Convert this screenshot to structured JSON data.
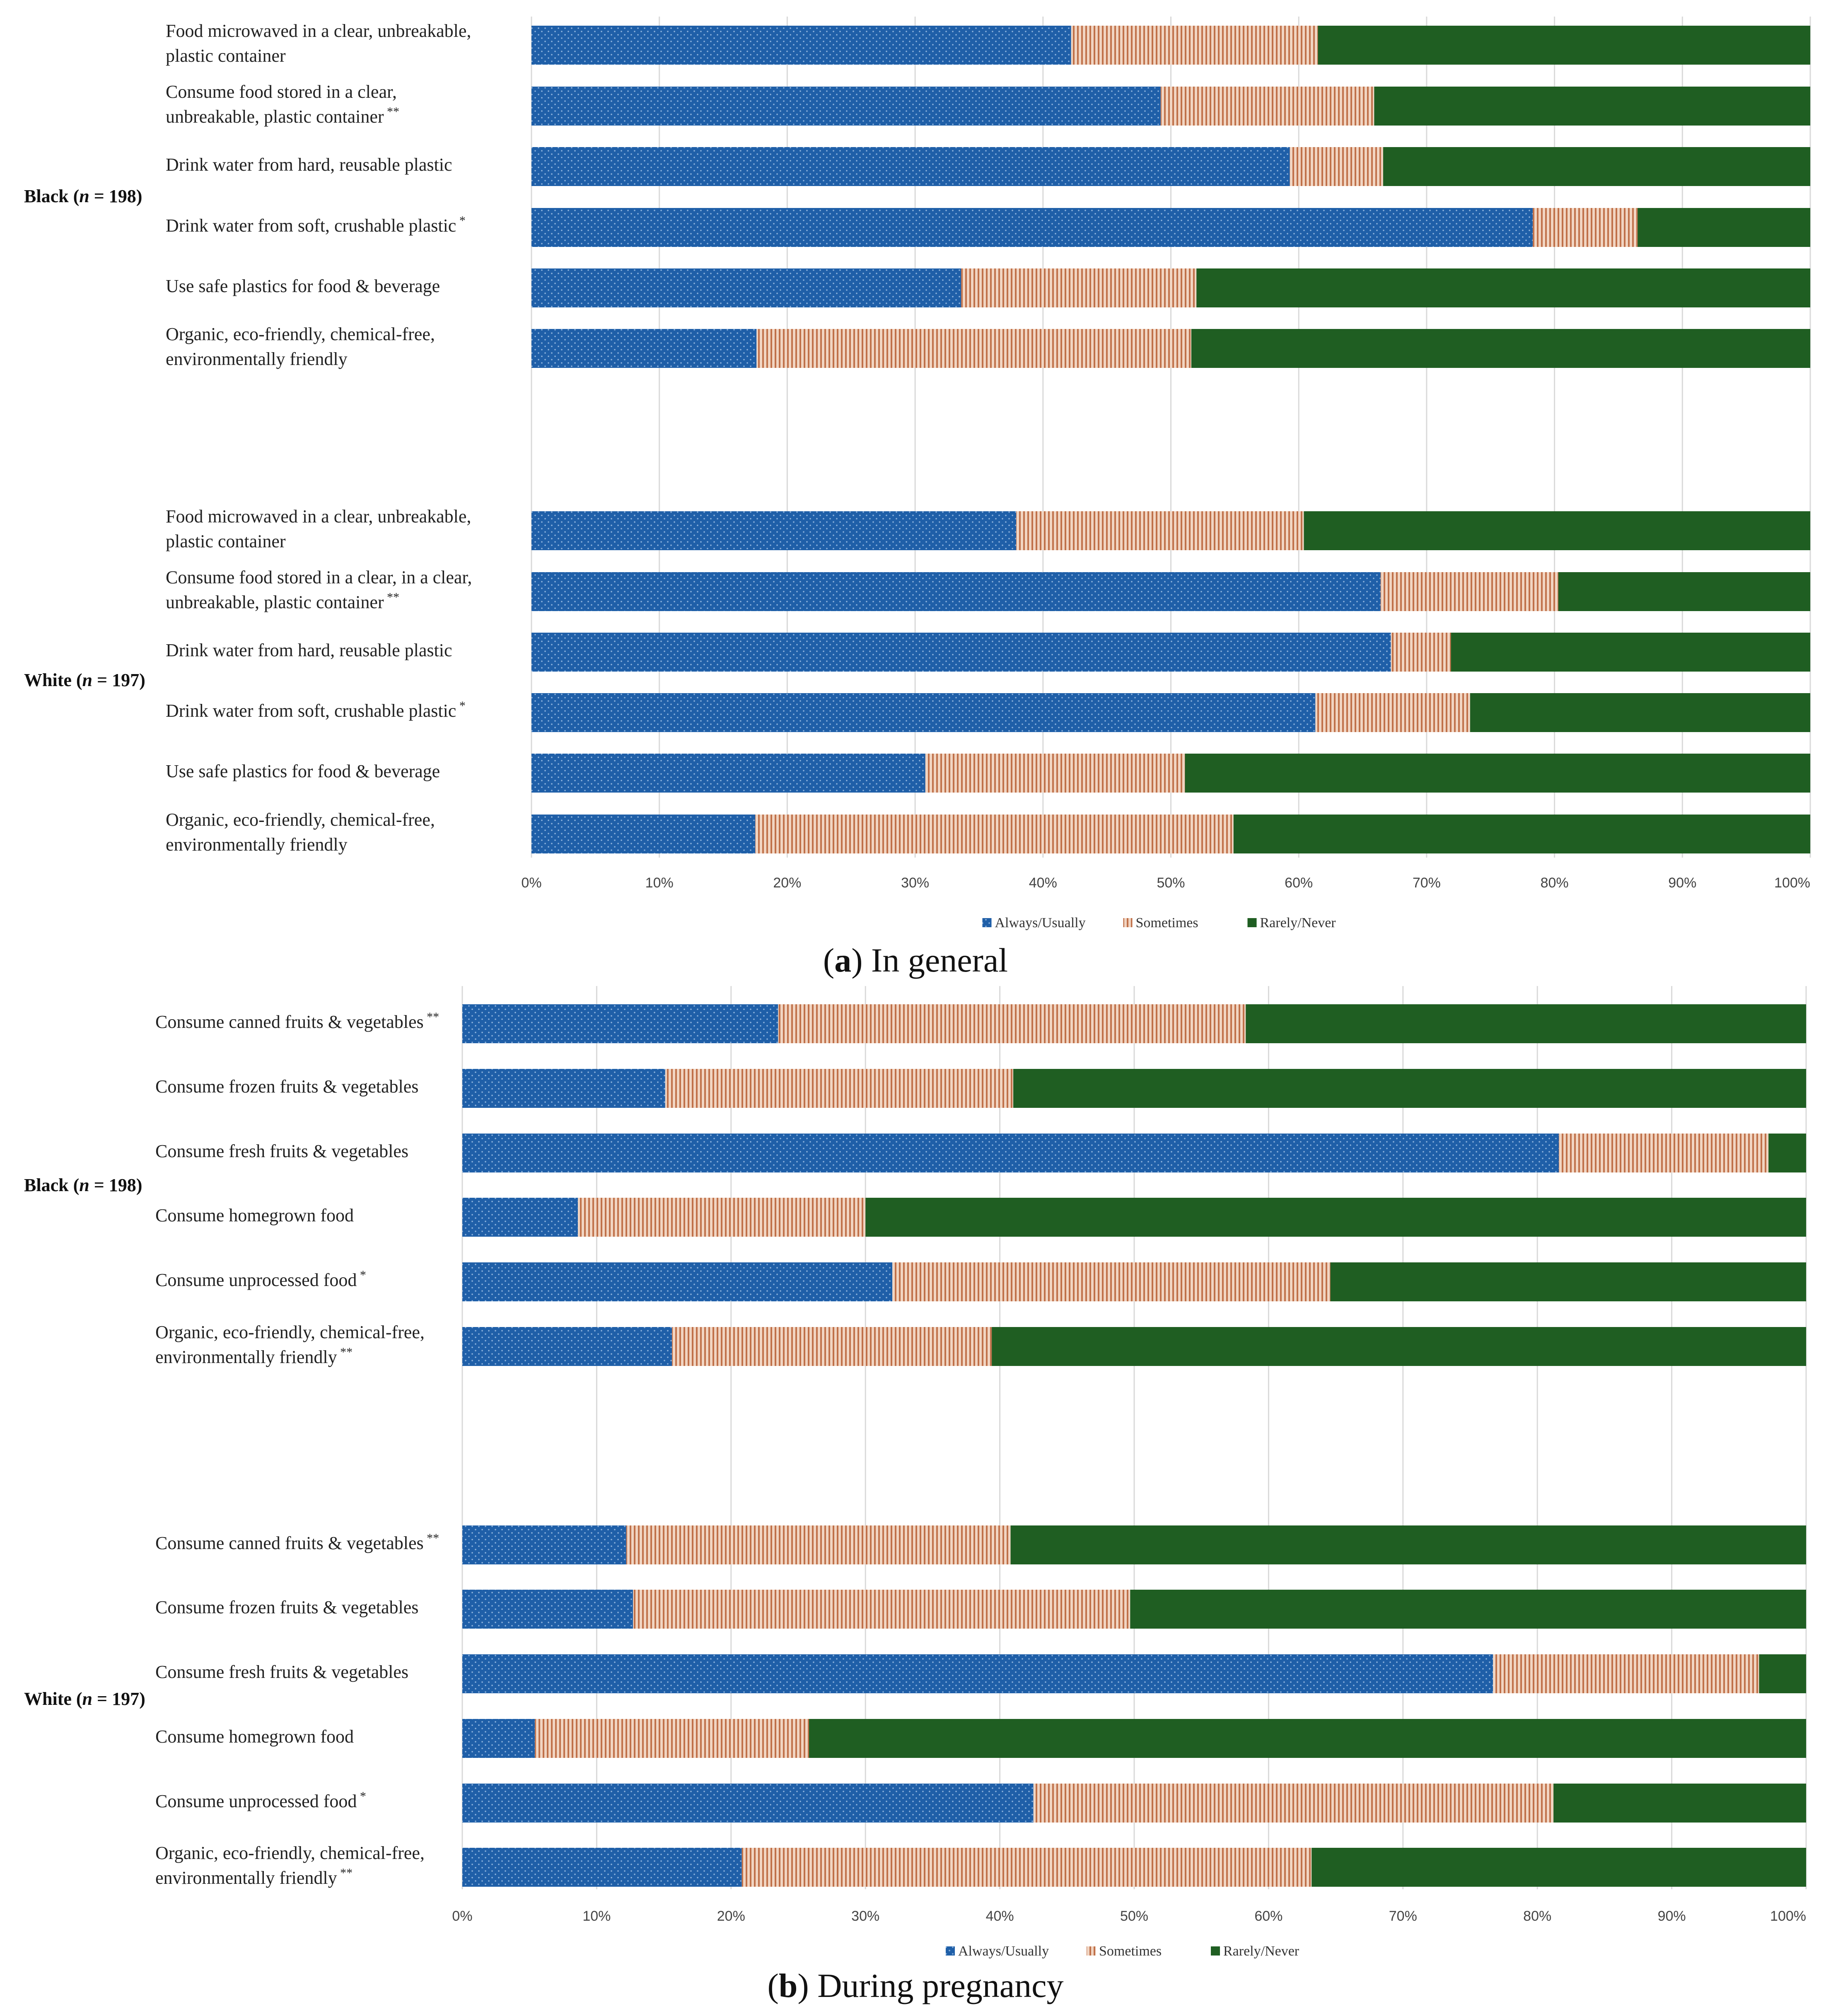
{
  "colors": {
    "always": "#1f5fa8",
    "sometimes": "#d8a88a",
    "rarely": "#1f5e22",
    "grid": "#d9d9d9"
  },
  "chart_data": [
    {
      "type": "bar",
      "orientation": "horizontal-stacked-percent",
      "caption_label": "a",
      "caption_text": "In general",
      "xlim": [
        0,
        100
      ],
      "x_tick_labels": [
        "0%",
        "10%",
        "20%",
        "30%",
        "40%",
        "50%",
        "60%",
        "70%",
        "80%",
        "90%",
        "100%"
      ],
      "legend": [
        "Always/Usually",
        "Sometimes",
        "Rarely/Never"
      ],
      "groups": [
        {
          "label": "Black (",
          "n_symbol": "n",
          "n_value": " = 198)",
          "categories": [
            {
              "lines": [
                "Food microwaved in a clear, unbreakable,",
                "plastic container"
              ],
              "sup": "",
              "values": [
                42.2,
                19.3,
                38.5
              ]
            },
            {
              "lines": [
                "Consume food stored in a clear,",
                "unbreakable, plastic container"
              ],
              "sup": "**",
              "values": [
                49.2,
                16.7,
                34.1
              ]
            },
            {
              "lines": [
                "Drink water from hard, reusable plastic"
              ],
              "sup": "",
              "values": [
                59.3,
                7.3,
                33.4
              ]
            },
            {
              "lines": [
                "Drink water from soft, crushable plastic"
              ],
              "sup": "*",
              "values": [
                78.3,
                8.2,
                13.5
              ]
            },
            {
              "lines": [
                "Use safe plastics for food & beverage"
              ],
              "sup": "",
              "values": [
                33.6,
                18.4,
                48.0
              ]
            },
            {
              "lines": [
                "Organic, eco-friendly, chemical-free,",
                "environmentally friendly"
              ],
              "sup": "",
              "values": [
                17.6,
                34.0,
                48.4
              ]
            }
          ]
        },
        {
          "label": "White (",
          "n_symbol": "n",
          "n_value": " = 197)",
          "categories": [
            {
              "lines": [
                "Food microwaved in a clear, unbreakable,",
                "plastic container"
              ],
              "sup": "",
              "values": [
                37.9,
                22.5,
                39.6
              ]
            },
            {
              "lines": [
                "Consume food stored in a clear,  in a clear,",
                "unbreakable, plastic container"
              ],
              "sup": "**",
              "values": [
                66.4,
                13.9,
                19.7
              ]
            },
            {
              "lines": [
                "Drink water from hard, reusable plastic"
              ],
              "sup": "",
              "values": [
                67.2,
                4.7,
                28.1
              ]
            },
            {
              "lines": [
                "Drink water from soft, crushable plastic"
              ],
              "sup": "*",
              "values": [
                61.3,
                12.1,
                26.6
              ]
            },
            {
              "lines": [
                "Use safe plastics for food & beverage"
              ],
              "sup": "",
              "values": [
                30.8,
                20.3,
                48.9
              ]
            },
            {
              "lines": [
                "Organic, eco-friendly, chemical-free,",
                "environmentally friendly"
              ],
              "sup": "",
              "values": [
                17.5,
                37.4,
                45.1
              ]
            }
          ]
        }
      ]
    },
    {
      "type": "bar",
      "orientation": "horizontal-stacked-percent",
      "caption_label": "b",
      "caption_text": "During pregnancy",
      "xlim": [
        0,
        100
      ],
      "x_tick_labels": [
        "0%",
        "10%",
        "20%",
        "30%",
        "40%",
        "50%",
        "60%",
        "70%",
        "80%",
        "90%",
        "100%"
      ],
      "legend": [
        "Always/Usually",
        "Sometimes",
        "Rarely/Never"
      ],
      "groups": [
        {
          "label": "Black (",
          "n_symbol": "n",
          "n_value": " = 198)",
          "categories": [
            {
              "lines": [
                "Consume canned fruits & vegetables"
              ],
              "sup": "**",
              "values": [
                23.5,
                34.8,
                41.7
              ]
            },
            {
              "lines": [
                "Consume frozen fruits & vegetables"
              ],
              "sup": "",
              "values": [
                15.1,
                25.9,
                59.0
              ]
            },
            {
              "lines": [
                "Consume fresh fruits & vegetables"
              ],
              "sup": "",
              "values": [
                81.6,
                15.6,
                2.8
              ]
            },
            {
              "lines": [
                "Consume homegrown food"
              ],
              "sup": "",
              "values": [
                8.6,
                21.4,
                70.0
              ]
            },
            {
              "lines": [
                "Consume unprocessed food"
              ],
              "sup": "*",
              "values": [
                32.0,
                32.6,
                35.4
              ]
            },
            {
              "lines": [
                "Organic, eco-friendly, chemical-free,",
                "environmentally friendly"
              ],
              "sup": "**",
              "values": [
                15.6,
                23.8,
                60.6
              ]
            }
          ]
        },
        {
          "label": "White (",
          "n_symbol": "n",
          "n_value": " = 197)",
          "categories": [
            {
              "lines": [
                "Consume canned fruits & vegetables"
              ],
              "sup": "**",
              "values": [
                12.2,
                28.6,
                59.2
              ]
            },
            {
              "lines": [
                "Consume frozen fruits & vegetables"
              ],
              "sup": "",
              "values": [
                12.7,
                37.0,
                50.3
              ]
            },
            {
              "lines": [
                "Consume fresh fruits & vegetables"
              ],
              "sup": "",
              "values": [
                76.7,
                19.8,
                3.5
              ]
            },
            {
              "lines": [
                "Consume homegrown food"
              ],
              "sup": "",
              "values": [
                5.4,
                20.4,
                74.2
              ]
            },
            {
              "lines": [
                "Consume unprocessed food"
              ],
              "sup": "*",
              "values": [
                42.5,
                38.7,
                18.8
              ]
            },
            {
              "lines": [
                "Organic, eco-friendly, chemical-free,",
                "environmentally friendly"
              ],
              "sup": "**",
              "values": [
                20.8,
                42.4,
                36.8
              ]
            }
          ]
        }
      ]
    }
  ]
}
